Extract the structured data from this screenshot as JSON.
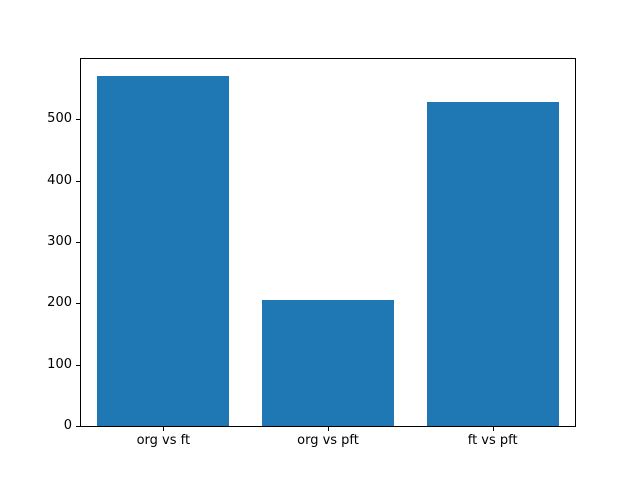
{
  "chart_data": {
    "type": "bar",
    "categories": [
      "org vs ft",
      "org vs pft",
      "ft vs pft"
    ],
    "values": [
      571,
      206,
      528
    ],
    "title": "",
    "xlabel": "",
    "ylabel": "",
    "ylim": [
      0,
      598
    ],
    "yticks": [
      0,
      100,
      200,
      300,
      400,
      500
    ],
    "bar_color": "#1f77b4",
    "axis_color": "#000000",
    "background_color": "#ffffff",
    "bar_width_fraction": 0.8,
    "grid": false,
    "legend": null
  }
}
